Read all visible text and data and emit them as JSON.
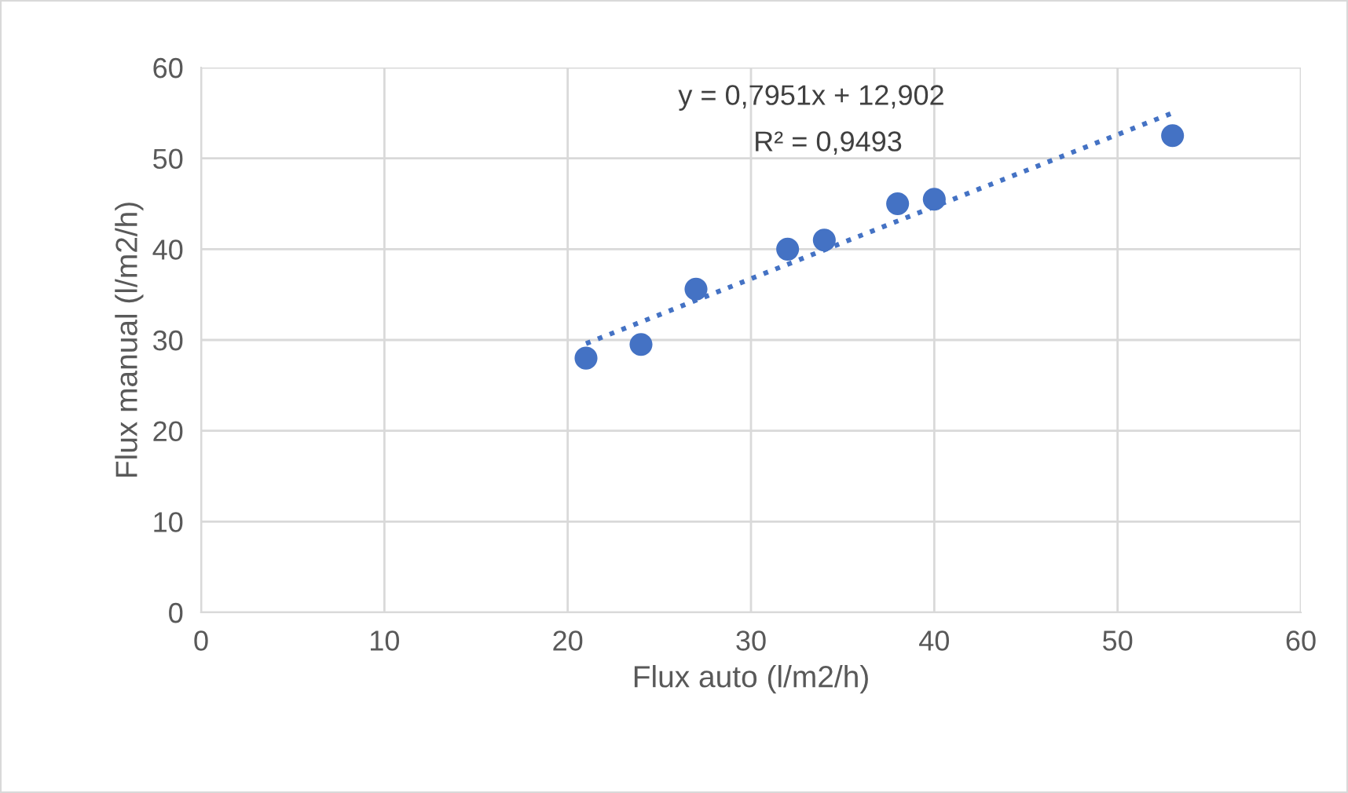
{
  "chart_data": {
    "type": "scatter",
    "xlabel": "Flux auto (l/m2/h)",
    "ylabel": "Flux manual (l/m2/h)",
    "xlim": [
      0,
      60
    ],
    "xticks": [
      0,
      10,
      20,
      30,
      40,
      50,
      60
    ],
    "ylim": [
      0,
      60
    ],
    "yticks": [
      0,
      10,
      20,
      30,
      40,
      50,
      60
    ],
    "grid": true,
    "marker": "circle",
    "series": [
      {
        "color": "#4472c4",
        "x": [
          21,
          24,
          27,
          32,
          34,
          38,
          40,
          53
        ],
        "values": [
          28,
          29.5,
          35.6,
          40,
          41,
          45,
          45.5,
          52.5
        ]
      },
      {
        "type": "line",
        "color": "#4472c4",
        "line_style": "dotted",
        "marker": "none",
        "x": [
          21,
          53
        ],
        "values": [
          29.6,
          55.0
        ]
      }
    ],
    "annotations": [
      "y = 0,7951x + 12,902",
      "R² = 0,9493"
    ]
  }
}
